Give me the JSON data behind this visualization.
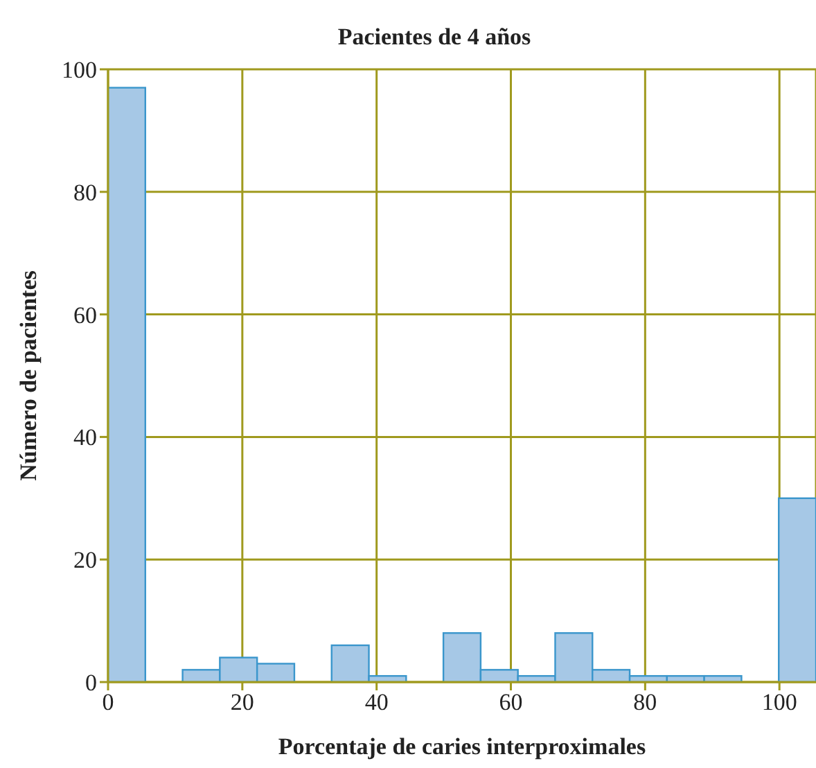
{
  "chart_data": {
    "type": "histogram",
    "title": "Pacientes de 4 años",
    "xlabel": "Porcentaje de caries interproximales",
    "ylabel": "Número de pacientes",
    "bins": [
      0,
      5.55,
      11.1,
      16.65,
      22.2,
      27.75,
      33.3,
      38.85,
      44.4,
      49.95,
      55.5,
      61.05,
      66.6,
      72.15,
      77.7,
      83.25,
      88.8,
      94.35,
      99.9,
      105.45
    ],
    "values": [
      97,
      0,
      2,
      4,
      3,
      0,
      6,
      1,
      0,
      8,
      2,
      1,
      8,
      2,
      1,
      1,
      1,
      0,
      30
    ],
    "color": "#a6c8e6",
    "xlim": [
      0,
      105.45
    ],
    "xticks": [
      0,
      20,
      40,
      60,
      80,
      100
    ],
    "ylim": [
      0,
      100
    ],
    "yticks": [
      0,
      20,
      40,
      60,
      80,
      100
    ],
    "grid": true
  }
}
